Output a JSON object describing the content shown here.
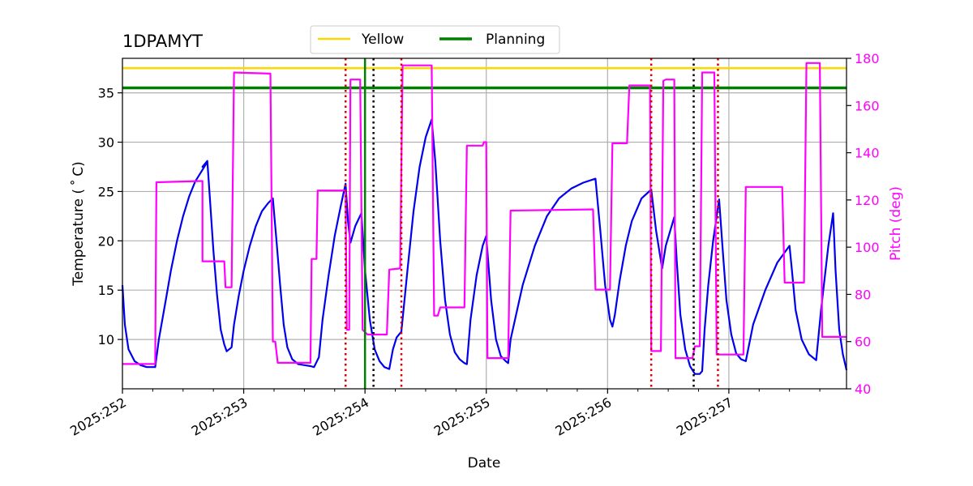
{
  "chart_data": {
    "type": "line",
    "title": "1DPAMYT",
    "xlabel": "Date",
    "ylabel_left": "Temperature ($^\\circ$C)",
    "ylabel_left_display": "Temperature ( ˚ C)",
    "ylabel_right": "Pitch (deg)",
    "xlim": [
      252.0,
      257.97
    ],
    "ylim_left": [
      5.0,
      38.5
    ],
    "ylim_right": [
      40,
      180
    ],
    "grid": true,
    "legend_position": "top-center",
    "x_ticks": [
      {
        "value": 252,
        "label": "2025:252"
      },
      {
        "value": 253,
        "label": "2025:253"
      },
      {
        "value": 254,
        "label": "2025:254"
      },
      {
        "value": 255,
        "label": "2025:255"
      },
      {
        "value": 256,
        "label": "2025:256"
      },
      {
        "value": 257,
        "label": "2025:257"
      }
    ],
    "y_ticks_left": [
      10,
      15,
      20,
      25,
      30,
      35
    ],
    "y_ticks_right": [
      40,
      60,
      80,
      100,
      120,
      140,
      160,
      180
    ],
    "colors": {
      "temperature": "#0000ee",
      "pitch": "#ff00ff",
      "yellow": "#ffd700",
      "planning": "#008000",
      "red_marker": "#dd0000",
      "black_marker": "#000000",
      "grid": "#b0b0b0",
      "right_axis": "#ff00ff"
    },
    "hlines": [
      {
        "name": "Yellow",
        "y": 37.5
      },
      {
        "name": "Planning",
        "y": 35.5
      }
    ],
    "vlines": [
      {
        "x": 253.84,
        "style": "red-dotted"
      },
      {
        "x": 254.07,
        "style": "black-dotted"
      },
      {
        "x": 254.3,
        "style": "red-dotted"
      },
      {
        "x": 256.36,
        "style": "red-dotted"
      },
      {
        "x": 256.71,
        "style": "black-dotted"
      },
      {
        "x": 256.91,
        "style": "red-dotted"
      },
      {
        "x": 254.0,
        "style": "green-solid"
      }
    ],
    "series": [
      {
        "name": "Temperature",
        "axis": "left",
        "points": [
          [
            252.0,
            15.5
          ],
          [
            252.02,
            11.5
          ],
          [
            252.05,
            9.0
          ],
          [
            252.1,
            7.8
          ],
          [
            252.15,
            7.4
          ],
          [
            252.2,
            7.2
          ],
          [
            252.27,
            7.2
          ],
          [
            252.3,
            10.0
          ],
          [
            252.35,
            13.5
          ],
          [
            252.4,
            17.0
          ],
          [
            252.45,
            20.0
          ],
          [
            252.5,
            22.5
          ],
          [
            252.55,
            24.5
          ],
          [
            252.6,
            26.0
          ],
          [
            252.65,
            27.0
          ],
          [
            252.7,
            28.0
          ],
          [
            252.66,
            27.5
          ],
          [
            252.7,
            28.1
          ],
          [
            252.72,
            24.5
          ],
          [
            252.75,
            19.0
          ],
          [
            252.78,
            14.5
          ],
          [
            252.81,
            11.0
          ],
          [
            252.84,
            9.5
          ],
          [
            252.86,
            8.8
          ],
          [
            252.9,
            9.2
          ],
          [
            252.92,
            11.5
          ],
          [
            252.96,
            14.5
          ],
          [
            253.0,
            17.0
          ],
          [
            253.05,
            19.5
          ],
          [
            253.1,
            21.5
          ],
          [
            253.15,
            23.0
          ],
          [
            253.2,
            23.8
          ],
          [
            253.24,
            24.3
          ],
          [
            253.27,
            20.0
          ],
          [
            253.3,
            15.5
          ],
          [
            253.33,
            11.5
          ],
          [
            253.36,
            9.2
          ],
          [
            253.4,
            8.0
          ],
          [
            253.45,
            7.5
          ],
          [
            253.5,
            7.4
          ],
          [
            253.55,
            7.3
          ],
          [
            253.58,
            7.2
          ],
          [
            253.62,
            8.2
          ],
          [
            253.65,
            12.0
          ],
          [
            253.7,
            16.5
          ],
          [
            253.75,
            20.5
          ],
          [
            253.8,
            23.5
          ],
          [
            253.84,
            25.8
          ],
          [
            253.86,
            22.0
          ],
          [
            253.88,
            19.8
          ],
          [
            253.92,
            21.5
          ],
          [
            253.97,
            22.8
          ],
          [
            254.0,
            17.0
          ],
          [
            254.04,
            12.0
          ],
          [
            254.08,
            9.0
          ],
          [
            254.12,
            7.8
          ],
          [
            254.16,
            7.2
          ],
          [
            254.2,
            7.0
          ],
          [
            254.23,
            9.0
          ],
          [
            254.26,
            10.2
          ],
          [
            254.3,
            10.8
          ],
          [
            254.35,
            17.0
          ],
          [
            254.4,
            23.0
          ],
          [
            254.45,
            27.5
          ],
          [
            254.5,
            30.5
          ],
          [
            254.55,
            32.3
          ],
          [
            254.58,
            28.0
          ],
          [
            254.62,
            20.0
          ],
          [
            254.66,
            14.0
          ],
          [
            254.7,
            10.5
          ],
          [
            254.74,
            8.7
          ],
          [
            254.78,
            8.0
          ],
          [
            254.82,
            7.6
          ],
          [
            254.84,
            7.5
          ],
          [
            254.87,
            12.0
          ],
          [
            254.92,
            16.5
          ],
          [
            254.97,
            19.5
          ],
          [
            255.0,
            20.5
          ],
          [
            255.04,
            14.0
          ],
          [
            255.08,
            10.0
          ],
          [
            255.12,
            8.3
          ],
          [
            255.16,
            7.8
          ],
          [
            255.18,
            7.6
          ],
          [
            255.2,
            10.0
          ],
          [
            255.3,
            15.5
          ],
          [
            255.4,
            19.5
          ],
          [
            255.5,
            22.5
          ],
          [
            255.6,
            24.3
          ],
          [
            255.7,
            25.3
          ],
          [
            255.8,
            25.9
          ],
          [
            255.9,
            26.3
          ],
          [
            255.94,
            21.0
          ],
          [
            255.98,
            15.5
          ],
          [
            256.02,
            12.0
          ],
          [
            256.04,
            11.3
          ],
          [
            256.06,
            12.5
          ],
          [
            256.1,
            16.0
          ],
          [
            256.15,
            19.5
          ],
          [
            256.2,
            22.0
          ],
          [
            256.28,
            24.3
          ],
          [
            256.36,
            25.2
          ],
          [
            256.4,
            21.0
          ],
          [
            256.45,
            17.2
          ],
          [
            256.48,
            19.5
          ],
          [
            256.55,
            22.4
          ],
          [
            256.57,
            18.0
          ],
          [
            256.6,
            12.5
          ],
          [
            256.64,
            9.0
          ],
          [
            256.68,
            7.3
          ],
          [
            256.72,
            6.5
          ],
          [
            256.76,
            6.5
          ],
          [
            256.78,
            6.8
          ],
          [
            256.8,
            11.0
          ],
          [
            256.83,
            15.5
          ],
          [
            256.87,
            20.0
          ],
          [
            256.92,
            24.2
          ],
          [
            256.95,
            19.0
          ],
          [
            256.98,
            14.0
          ],
          [
            257.02,
            10.5
          ],
          [
            257.06,
            8.6
          ],
          [
            257.1,
            8.0
          ],
          [
            257.14,
            7.8
          ],
          [
            257.2,
            11.5
          ],
          [
            257.3,
            15.0
          ],
          [
            257.4,
            17.8
          ],
          [
            257.5,
            19.5
          ],
          [
            257.52,
            17.0
          ],
          [
            257.55,
            13.0
          ],
          [
            257.6,
            10.0
          ],
          [
            257.66,
            8.5
          ],
          [
            257.72,
            7.9
          ],
          [
            257.76,
            13.0
          ],
          [
            257.82,
            19.5
          ],
          [
            257.86,
            22.8
          ],
          [
            257.88,
            17.0
          ],
          [
            257.91,
            11.0
          ],
          [
            257.94,
            8.5
          ],
          [
            257.97,
            6.9
          ]
        ]
      },
      {
        "name": "Pitch",
        "axis": "right",
        "points": [
          [
            252.0,
            50.5
          ],
          [
            252.27,
            50.5
          ],
          [
            252.27,
            51
          ],
          [
            252.28,
            127.5
          ],
          [
            252.65,
            128
          ],
          [
            252.66,
            128
          ],
          [
            252.66,
            94
          ],
          [
            252.84,
            94
          ],
          [
            252.85,
            83
          ],
          [
            252.9,
            83
          ],
          [
            252.92,
            174
          ],
          [
            253.22,
            173.5
          ],
          [
            253.24,
            60
          ],
          [
            253.26,
            60
          ],
          [
            253.28,
            51
          ],
          [
            253.55,
            51
          ],
          [
            253.56,
            95
          ],
          [
            253.6,
            95
          ],
          [
            253.61,
            124
          ],
          [
            253.84,
            124
          ],
          [
            253.85,
            65
          ],
          [
            253.87,
            65
          ],
          [
            253.88,
            171
          ],
          [
            253.96,
            171
          ],
          [
            253.98,
            65
          ],
          [
            254.02,
            63
          ],
          [
            254.18,
            63
          ],
          [
            254.2,
            90.5
          ],
          [
            254.29,
            91
          ],
          [
            254.31,
            177
          ],
          [
            254.55,
            177
          ],
          [
            254.57,
            71
          ],
          [
            254.6,
            71
          ],
          [
            254.62,
            74.5
          ],
          [
            254.82,
            74.5
          ],
          [
            254.84,
            143
          ],
          [
            254.97,
            143
          ],
          [
            254.98,
            144.5
          ],
          [
            255.0,
            144.5
          ],
          [
            255.01,
            53
          ],
          [
            255.18,
            53
          ],
          [
            255.2,
            115.5
          ],
          [
            255.88,
            116
          ],
          [
            255.9,
            82
          ],
          [
            256.02,
            82
          ],
          [
            256.04,
            144
          ],
          [
            256.16,
            144
          ],
          [
            256.18,
            168.5
          ],
          [
            256.35,
            168.5
          ],
          [
            256.36,
            56
          ],
          [
            256.44,
            56
          ],
          [
            256.46,
            170.5
          ],
          [
            256.48,
            171
          ],
          [
            256.55,
            171
          ],
          [
            256.56,
            53
          ],
          [
            256.7,
            53
          ],
          [
            256.72,
            58
          ],
          [
            256.76,
            58
          ],
          [
            256.78,
            174
          ],
          [
            256.88,
            174
          ],
          [
            256.9,
            54.5
          ],
          [
            257.12,
            54.5
          ],
          [
            257.14,
            125.5
          ],
          [
            257.44,
            125.5
          ],
          [
            257.46,
            85
          ],
          [
            257.62,
            85
          ],
          [
            257.64,
            178
          ],
          [
            257.75,
            178
          ],
          [
            257.77,
            62
          ],
          [
            257.97,
            62
          ]
        ]
      }
    ],
    "legend": [
      "Yellow",
      "Planning"
    ]
  }
}
